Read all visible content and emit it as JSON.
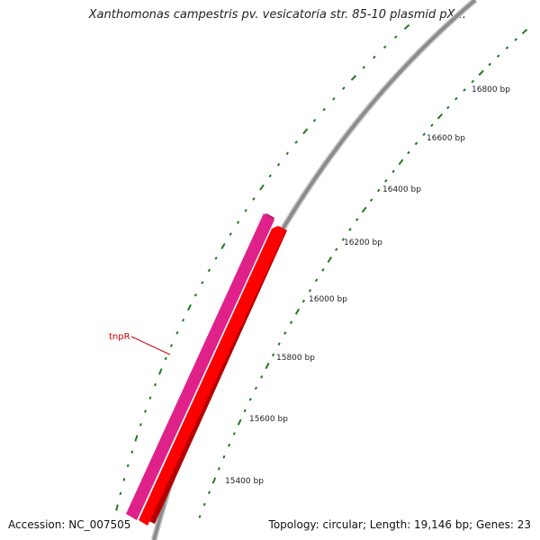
{
  "map": {
    "title": "Xanthomonas campestris pv. vesicatoria str. 85-10 plasmid pX...",
    "accession": "Accession: NC_007505",
    "summary": "Topology: circular; Length: 19,146 bp; Genes: 23"
  },
  "ticks": [
    {
      "label": "15400 bp"
    },
    {
      "label": "15600 bp"
    },
    {
      "label": "15800 bp"
    },
    {
      "label": "16000 bp"
    },
    {
      "label": "16200 bp"
    },
    {
      "label": "16400 bp"
    },
    {
      "label": "16600 bp"
    },
    {
      "label": "16800 bp"
    }
  ],
  "features": [
    {
      "label": "tnpR",
      "color": "#e0218a",
      "type": "gene"
    },
    {
      "color": "#ff0000",
      "type": "cds"
    }
  ],
  "colors": {
    "backbone": "#8c8c8c",
    "tick": "#1f7a1f",
    "gene_label": "#cc0000"
  }
}
